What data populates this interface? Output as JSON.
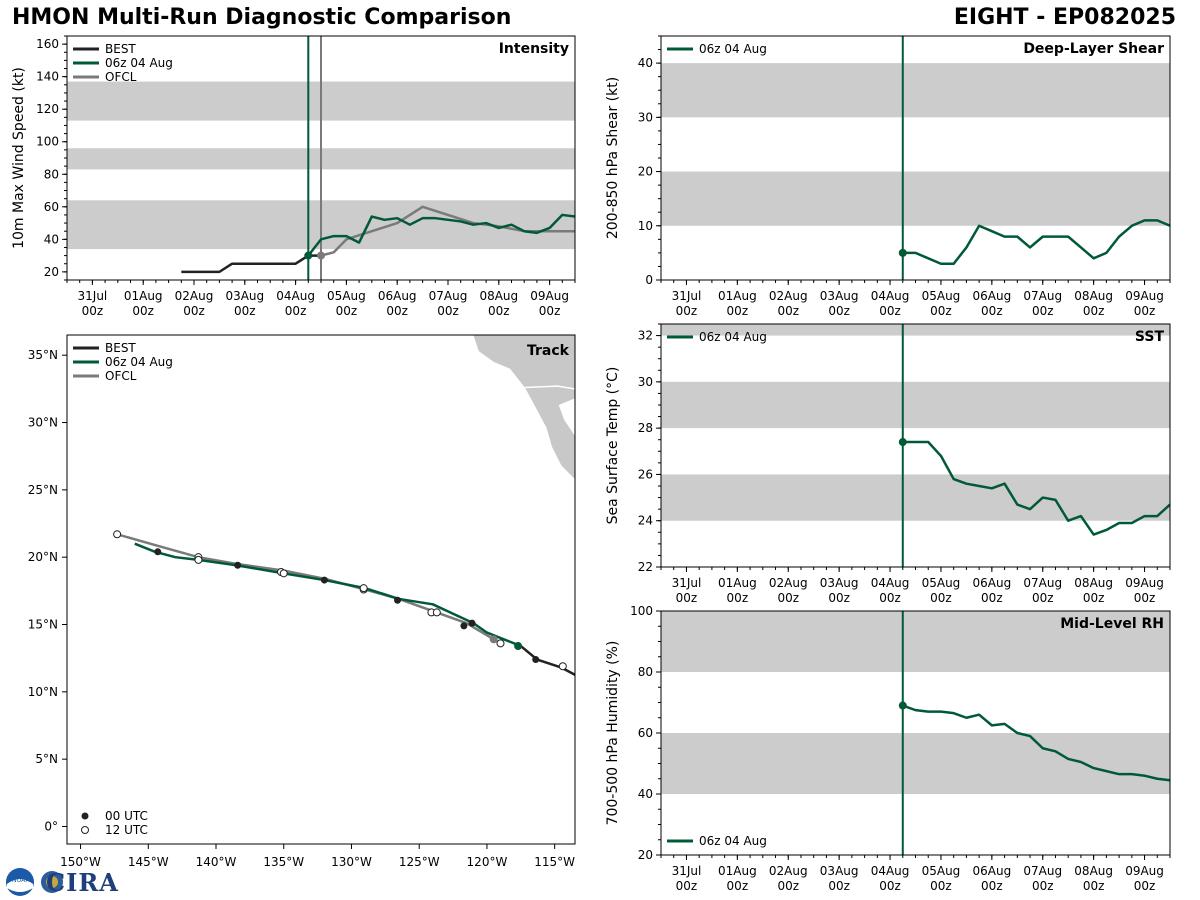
{
  "header": {
    "title_left": "HMON Multi-Run Diagnostic Comparison",
    "title_right": "EIGHT - EP082025"
  },
  "logos": {
    "text": "CIRA",
    "noaa_text": "NOAA"
  },
  "colors": {
    "best": "#222222",
    "run": "#005a36",
    "ofcl": "#7a7a7a",
    "band": "#cccccc"
  },
  "time_axis": {
    "labels": [
      [
        "31Jul",
        "00z"
      ],
      [
        "01Aug",
        "00z"
      ],
      [
        "02Aug",
        "00z"
      ],
      [
        "03Aug",
        "00z"
      ],
      [
        "04Aug",
        "00z"
      ],
      [
        "05Aug",
        "00z"
      ],
      [
        "06Aug",
        "00z"
      ],
      [
        "07Aug",
        "00z"
      ],
      [
        "08Aug",
        "00z"
      ],
      [
        "09Aug",
        "00z"
      ]
    ],
    "range": [
      -0.5,
      9.5
    ],
    "init_time": 4.25,
    "ofcl_time": 4.5
  },
  "chart_data": [
    {
      "id": "intensity",
      "type": "line",
      "title": "Intensity",
      "ylabel": "10m Max Wind Speed (kt)",
      "ylim": [
        15,
        165
      ],
      "yticks": [
        20,
        40,
        60,
        80,
        100,
        120,
        140,
        160
      ],
      "bands": [
        [
          34,
          64
        ],
        [
          83,
          96
        ],
        [
          113,
          137
        ]
      ],
      "legend": [
        "BEST",
        "06z 04 Aug",
        "OFCL"
      ],
      "series": [
        {
          "name": "BEST",
          "x": [
            1.75,
            2,
            2.25,
            2.5,
            2.75,
            3,
            3.25,
            3.5,
            3.75,
            4,
            4.25,
            4.5
          ],
          "y": [
            20,
            20,
            20,
            20,
            25,
            25,
            25,
            25,
            25,
            25,
            30,
            30
          ]
        },
        {
          "name": "06z 04 Aug",
          "x": [
            4.25,
            4.5,
            4.75,
            5,
            5.25,
            5.5,
            5.75,
            6,
            6.25,
            6.5,
            6.75,
            7,
            7.25,
            7.5,
            7.75,
            8,
            8.25,
            8.5,
            8.75,
            9,
            9.25,
            9.5
          ],
          "y": [
            30,
            40,
            42,
            42,
            38,
            54,
            52,
            53,
            49,
            53,
            53,
            52,
            51,
            49,
            50,
            47,
            49,
            45,
            44,
            47,
            55,
            54
          ]
        },
        {
          "name": "OFCL",
          "x": [
            4.5,
            4.75,
            5,
            5.5,
            6,
            6.5,
            7,
            7.5,
            8,
            8.5,
            9,
            9.5
          ],
          "y": [
            30,
            32,
            40,
            45,
            50,
            60,
            55,
            50,
            48,
            45,
            45,
            45
          ]
        }
      ]
    },
    {
      "id": "shear",
      "type": "line",
      "title": "Deep-Layer Shear",
      "ylabel": "200-850 hPa Shear (kt)",
      "ylim": [
        0,
        45
      ],
      "yticks": [
        0,
        10,
        20,
        30,
        40
      ],
      "bands": [
        [
          10,
          20
        ],
        [
          30,
          40
        ]
      ],
      "legend": [
        "06z 04 Aug"
      ],
      "series": [
        {
          "name": "06z 04 Aug",
          "x": [
            4.25,
            4.5,
            4.75,
            5,
            5.25,
            5.5,
            5.75,
            6,
            6.25,
            6.5,
            6.75,
            7,
            7.25,
            7.5,
            7.75,
            8,
            8.25,
            8.5,
            8.75,
            9,
            9.25,
            9.5
          ],
          "y": [
            5,
            5,
            4,
            3,
            3,
            6,
            10,
            9,
            8,
            8,
            6,
            8,
            8,
            8,
            6,
            4,
            5,
            8,
            10,
            11,
            11,
            10
          ]
        }
      ]
    },
    {
      "id": "sst",
      "type": "line",
      "title": "SST",
      "ylabel": "Sea Surface Temp (°C)",
      "ylim": [
        22,
        32.5
      ],
      "yticks": [
        22,
        24,
        26,
        28,
        30,
        32
      ],
      "bands": [
        [
          24,
          26
        ],
        [
          28,
          30
        ],
        [
          32,
          33
        ]
      ],
      "legend": [
        "06z 04 Aug"
      ],
      "series": [
        {
          "name": "06z 04 Aug",
          "x": [
            4.25,
            4.5,
            4.75,
            5,
            5.25,
            5.5,
            5.75,
            6,
            6.25,
            6.5,
            6.75,
            7,
            7.25,
            7.5,
            7.75,
            8,
            8.25,
            8.5,
            8.75,
            9,
            9.25,
            9.5
          ],
          "y": [
            27.4,
            27.4,
            27.4,
            26.8,
            25.8,
            25.6,
            25.5,
            25.4,
            25.6,
            24.7,
            24.5,
            25.0,
            24.9,
            24.0,
            24.2,
            23.4,
            23.6,
            23.9,
            23.9,
            24.2,
            24.2,
            24.7
          ]
        }
      ]
    },
    {
      "id": "rh",
      "type": "line",
      "title": "Mid-Level RH",
      "ylabel": "700-500 hPa Humidity (%)",
      "ylim": [
        20,
        100
      ],
      "yticks": [
        20,
        40,
        60,
        80,
        100
      ],
      "bands": [
        [
          40,
          60
        ],
        [
          80,
          100
        ]
      ],
      "legend": [
        "06z 04 Aug"
      ],
      "series": [
        {
          "name": "06z 04 Aug",
          "x": [
            4.25,
            4.5,
            4.75,
            5,
            5.25,
            5.5,
            5.75,
            6,
            6.25,
            6.5,
            6.75,
            7,
            7.25,
            7.5,
            7.75,
            8,
            8.25,
            8.5,
            8.75,
            9,
            9.25,
            9.5
          ],
          "y": [
            69,
            67.5,
            67,
            67,
            66.5,
            65,
            66,
            62.5,
            63,
            60,
            59,
            55,
            54,
            51.5,
            50.5,
            48.5,
            47.5,
            46.5,
            46.5,
            46,
            45,
            44.5
          ]
        }
      ]
    },
    {
      "id": "track",
      "type": "scatter",
      "title": "Track",
      "xlim": [
        -151,
        -113.5
      ],
      "ylim": [
        -1.3,
        36.5
      ],
      "xticks": [
        [
          -150,
          "150°W"
        ],
        [
          -145,
          "145°W"
        ],
        [
          -140,
          "140°W"
        ],
        [
          -135,
          "135°W"
        ],
        [
          -130,
          "130°W"
        ],
        [
          -125,
          "125°W"
        ],
        [
          -120,
          "120°W"
        ],
        [
          -115,
          "115°W"
        ]
      ],
      "yticks": [
        [
          0,
          "0°"
        ],
        [
          5,
          "5°N"
        ],
        [
          10,
          "10°N"
        ],
        [
          15,
          "15°N"
        ],
        [
          20,
          "20°N"
        ],
        [
          25,
          "25°N"
        ],
        [
          30,
          "30°N"
        ],
        [
          35,
          "35°N"
        ]
      ],
      "legend": [
        "BEST",
        "06z 04 Aug",
        "OFCL"
      ],
      "marker_legend": [
        "00 UTC",
        "12 UTC"
      ],
      "best": {
        "lon": [
          -113,
          -114.5,
          -116.3,
          -117.5
        ],
        "lat": [
          11,
          11.8,
          12.4,
          13.4
        ]
      },
      "run": {
        "lon": [
          -117.5,
          -118.5,
          -120,
          -121,
          -122.5,
          -124,
          -126.5,
          -129,
          -132,
          -135,
          -138.5,
          -141.3,
          -143,
          -144.5,
          -146
        ],
        "lat": [
          13.4,
          13.8,
          14.4,
          15.1,
          15.8,
          16.5,
          16.9,
          17.7,
          18.3,
          18.8,
          19.4,
          19.8,
          20.0,
          20.4,
          21.0
        ],
        "markers": [
          {
            "lon": -117.7,
            "lat": 13.4,
            "k": "init"
          },
          {
            "lon": -119,
            "lat": 13.6,
            "k": "12"
          },
          {
            "lon": -121.7,
            "lat": 14.9,
            "k": "00"
          },
          {
            "lon": -123.7,
            "lat": 15.9,
            "k": "12"
          },
          {
            "lon": -126.6,
            "lat": 16.8,
            "k": "00"
          },
          {
            "lon": -129.1,
            "lat": 17.7,
            "k": "12"
          },
          {
            "lon": -132,
            "lat": 18.3,
            "k": "00"
          },
          {
            "lon": -135,
            "lat": 18.8,
            "k": "12"
          },
          {
            "lon": -138.4,
            "lat": 19.4,
            "k": "00"
          },
          {
            "lon": -141.3,
            "lat": 19.8,
            "k": "12"
          },
          {
            "lon": -144.3,
            "lat": 20.4,
            "k": "00"
          }
        ]
      },
      "ofcl": {
        "lon": [
          -119.5,
          -121.5,
          -124,
          -126.5,
          -129,
          -132,
          -135,
          -138.5,
          -141.3,
          -144.5,
          -147.3
        ],
        "lat": [
          13.9,
          15.1,
          16.0,
          16.9,
          17.6,
          18.4,
          19.0,
          19.5,
          20.0,
          20.9,
          21.7
        ],
        "markers": [
          {
            "lon": -119.5,
            "lat": 13.9,
            "k": "ofcl"
          },
          {
            "lon": -121.1,
            "lat": 15.1,
            "k": "00"
          },
          {
            "lon": -124.1,
            "lat": 15.9,
            "k": "12"
          },
          {
            "lon": -129.1,
            "lat": 17.6,
            "k": "12"
          },
          {
            "lon": -135.2,
            "lat": 18.9,
            "k": "12"
          },
          {
            "lon": -141.3,
            "lat": 20.0,
            "k": "12"
          },
          {
            "lon": -147.3,
            "lat": 21.7,
            "k": "12"
          }
        ]
      }
    }
  ]
}
